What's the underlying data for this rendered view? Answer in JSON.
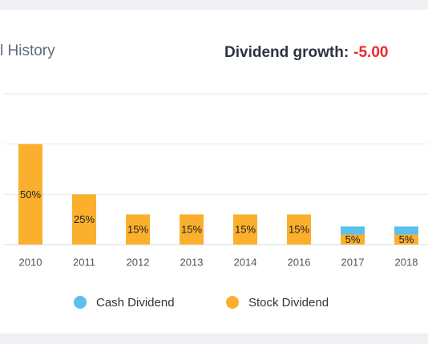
{
  "header": {
    "title": "l History",
    "growth_label": "Dividend growth:",
    "growth_value": "-5.00"
  },
  "chart_data": {
    "type": "stacked_bar",
    "categories": [
      "2010",
      "2011",
      "2012",
      "2013",
      "2014",
      "2016",
      "2017",
      "2018"
    ],
    "series": [
      {
        "name": "Cash Dividend",
        "color": "#5bc0eb",
        "values": [
          0,
          0,
          0,
          0,
          0,
          0,
          4,
          4
        ]
      },
      {
        "name": "Stock Dividend",
        "color": "#fbb02d",
        "values": [
          50,
          25,
          15,
          15,
          15,
          15,
          5,
          5
        ],
        "value_labels": [
          "50%",
          "25%",
          "15%",
          "15%",
          "15%",
          "15%",
          "5%",
          "5%"
        ]
      }
    ],
    "ylim": [
      0,
      75
    ],
    "yticks": [
      0,
      25,
      50,
      75
    ],
    "grid": true,
    "legend": "bottom"
  }
}
